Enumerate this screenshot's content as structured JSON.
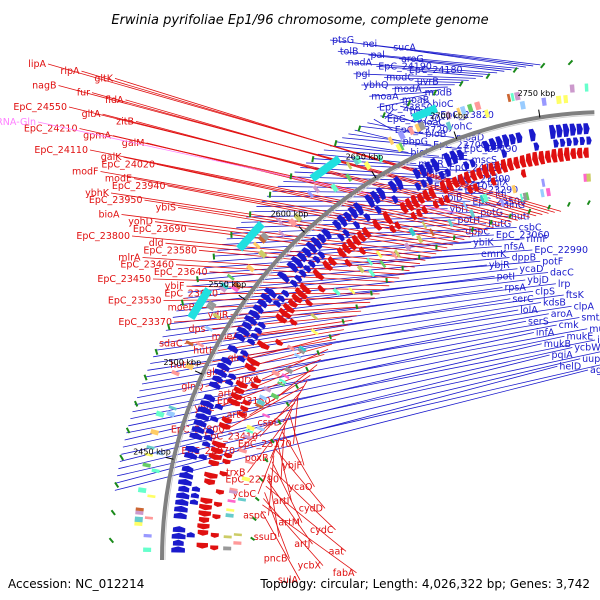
{
  "map": {
    "title": "Erwinia pyrifoliae Ep1/96 chromosome, complete genome",
    "accession": "Accession: NC_012214",
    "summary": "Topology: circular; Length: 4,026,322 bp; Genes: 3,742",
    "colors": {
      "forward": "#1a1acc",
      "reverse": "#e01010",
      "rna": "#ff80ff",
      "backbone": "#808080",
      "gc_tick": "#1a8a1a"
    },
    "ticks": [
      {
        "label": "2750 kbp"
      },
      {
        "label": "2700 kbp"
      },
      {
        "label": "2650 kbp"
      },
      {
        "label": "2600 kbp"
      },
      {
        "label": "2550 kbp"
      },
      {
        "label": "2500 kbp"
      },
      {
        "label": "2450 kbp"
      }
    ],
    "forward_labels": [
      "ptsG",
      "nei",
      "sucA",
      "tolB",
      "pal",
      "aroG",
      "nadA",
      "EpC_24190",
      "EpC_24180",
      "pgl",
      "modC",
      "uvrB",
      "ybhQ",
      "modA",
      "modB",
      "moaA",
      "moaB",
      "bioC",
      "EpC_23850",
      "bioD",
      "EpC_23820",
      "EpC_23730",
      "moaC",
      "yohC",
      "EpC_23720",
      "bioB",
      "moaD",
      "pbpG",
      "EpC_23700",
      "EpC_23490",
      "bioF",
      "moaE",
      "mscS",
      "mntR",
      "EpC_24120",
      "rhlE",
      "hipB",
      "EpC_23300",
      "bglX",
      "EpC_23610",
      "EpC_23290",
      "idi",
      "ybiB",
      "EpC_23500",
      "dinG",
      "ybiT",
      "potG",
      "hutI",
      "potH",
      "hutG",
      "csbC",
      "dppC",
      "EpC_23060",
      "rlmF",
      "ybiK",
      "nfsA",
      "EpC_22990",
      "emrK",
      "dppB",
      "potF",
      "ybjR",
      "ycaD",
      "dacC",
      "potI",
      "ybjD",
      "lrp",
      "rpsA",
      "clpS",
      "ftsK",
      "serC",
      "kdsB",
      "clpA",
      "lolA",
      "aroA",
      "smtA",
      "serS",
      "cmk",
      "mukF",
      "infA",
      "mukE",
      "ihfB",
      "mukB",
      "ycbW",
      "pepN",
      "pqiA",
      "uup",
      "ycbG",
      "helD",
      "agp"
    ],
    "reverse_labels": [
      "lipA",
      "rlpA",
      "gltK",
      "nagB",
      "fur",
      "fldA",
      "EpC_24550",
      "gltA",
      "zitB",
      "EpC_24210",
      "gpmA",
      "galM",
      "EpC_24110",
      "galK",
      "EpC_24020",
      "modF",
      "modE",
      "EpC_23940",
      "ybhK",
      "EpC_23950",
      "ybiS",
      "bioA",
      "yohD",
      "EpC_23690",
      "EpC_23800",
      "dld",
      "EpC_23580",
      "mlrA",
      "EpC_23460",
      "EpC_23640",
      "EpC_23450",
      "ybiF",
      "EpC_23650",
      "EpC_23530",
      "moeB",
      "ydjR",
      "EpC_23370",
      "dps",
      "moeA",
      "sdaC",
      "hutH",
      "glnH",
      "hutU",
      "glnP",
      "grxA",
      "glnQ",
      "artP",
      "EpC_23160",
      "ybjL",
      "artQ",
      "cspD",
      "EpC_22800",
      "EpC_23410",
      "EpC_23170",
      "EpC_22970",
      "poxB",
      "ybjF",
      "trxB",
      "EpC_22790",
      "ycaO",
      "ycbC",
      "artI",
      "cydD",
      "aspC",
      "artM",
      "cydC",
      "ssuD",
      "artJ",
      "aat",
      "pncB",
      "ycbX",
      "fabA",
      "sulA"
    ],
    "rna_labels": [
      "tRNA-Gln"
    ]
  }
}
